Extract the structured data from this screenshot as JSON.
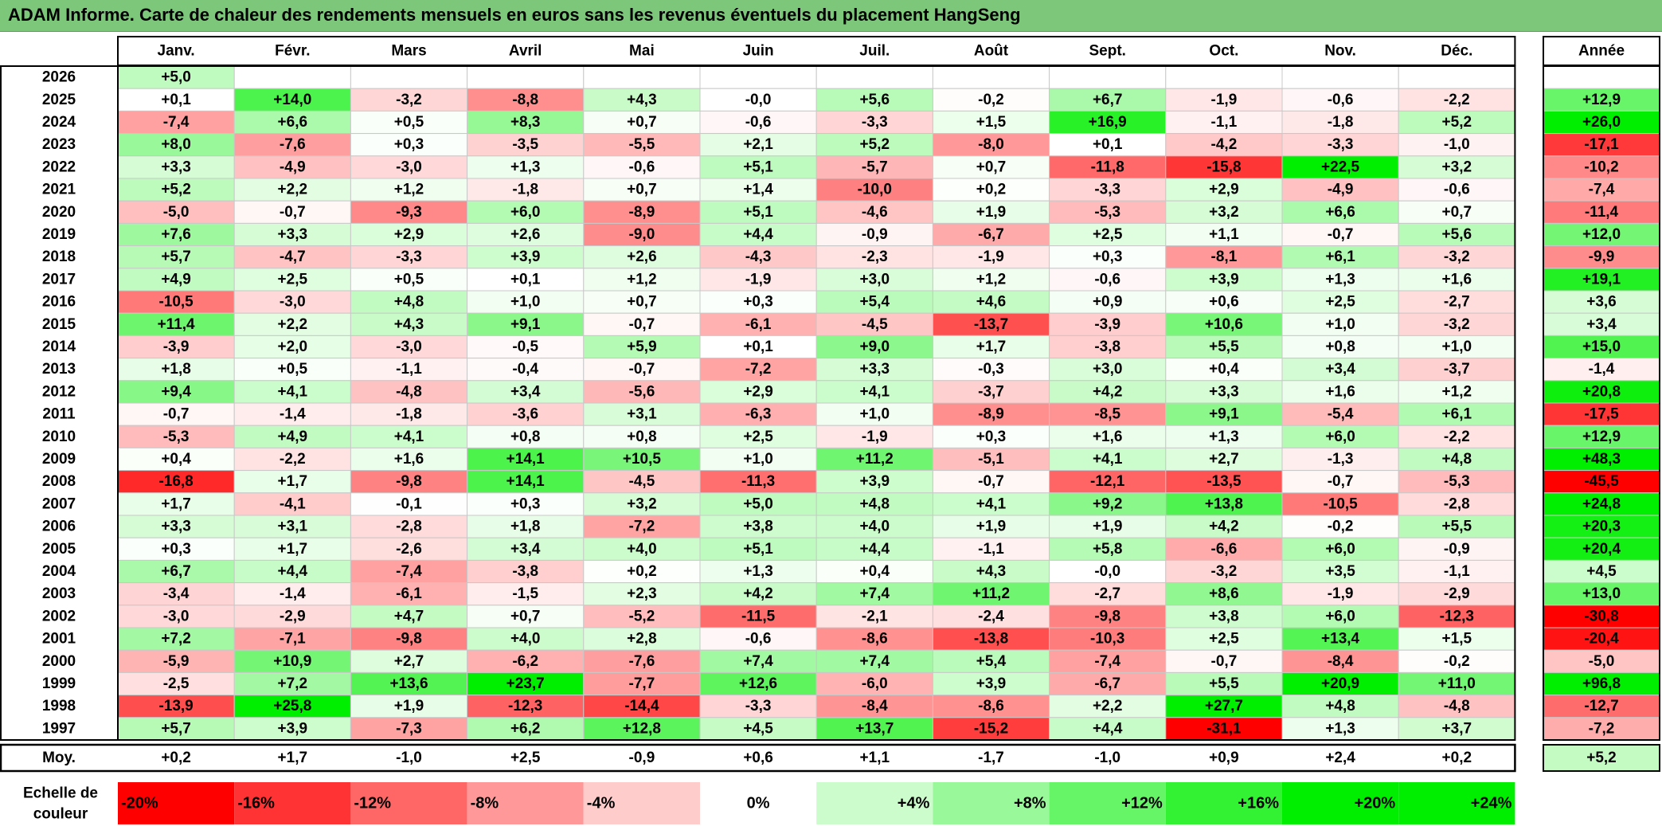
{
  "title": "ADAM Informe. Carte de chaleur des rendements mensuels en euros sans les revenus éventuels du placement HangSeng",
  "colors": {
    "negative_max": "#ff0000",
    "neutral": "#ffffff",
    "positive_max": "#00ee00",
    "title_bg": "#7cc77a",
    "border": "#000000"
  },
  "chart_data": {
    "type": "heatmap",
    "months": [
      "Janv.",
      "Févr.",
      "Mars",
      "Avril",
      "Mai",
      "Juin",
      "Juil.",
      "Août",
      "Sept.",
      "Oct.",
      "Nov.",
      "Déc."
    ],
    "annual_header": "Année",
    "avg_label": "Moy.",
    "years": [
      "2026",
      "2025",
      "2024",
      "2023",
      "2022",
      "2021",
      "2020",
      "2019",
      "2018",
      "2017",
      "2016",
      "2015",
      "2014",
      "2013",
      "2012",
      "2011",
      "2010",
      "2009",
      "2008",
      "2007",
      "2006",
      "2005",
      "2004",
      "2003",
      "2002",
      "2001",
      "2000",
      "1999",
      "1998",
      "1997"
    ],
    "values": [
      [
        "+5,0",
        "",
        "",
        "",
        "",
        "",
        "",
        "",
        "",
        "",
        "",
        ""
      ],
      [
        "+0,1",
        "+14,0",
        "-3,2",
        "-8,8",
        "+4,3",
        "-0,0",
        "+5,6",
        "-0,2",
        "+6,7",
        "-1,9",
        "-0,6",
        "-2,2"
      ],
      [
        "-7,4",
        "+6,6",
        "+0,5",
        "+8,3",
        "+0,7",
        "-0,6",
        "-3,3",
        "+1,5",
        "+16,9",
        "-1,1",
        "-1,8",
        "+5,2"
      ],
      [
        "+8,0",
        "-7,6",
        "+0,3",
        "-3,5",
        "-5,5",
        "+2,1",
        "+5,2",
        "-8,0",
        "+0,1",
        "-4,2",
        "-3,3",
        "-1,0"
      ],
      [
        "+3,3",
        "-4,9",
        "-3,0",
        "+1,3",
        "-0,6",
        "+5,1",
        "-5,7",
        "+0,7",
        "-11,8",
        "-15,8",
        "+22,5",
        "+3,2"
      ],
      [
        "+5,2",
        "+2,2",
        "+1,2",
        "-1,8",
        "+0,7",
        "+1,4",
        "-10,0",
        "+0,2",
        "-3,3",
        "+2,9",
        "-4,9",
        "-0,6"
      ],
      [
        "-5,0",
        "-0,7",
        "-9,3",
        "+6,0",
        "-8,9",
        "+5,1",
        "-4,6",
        "+1,9",
        "-5,3",
        "+3,2",
        "+6,6",
        "+0,7"
      ],
      [
        "+7,6",
        "+3,3",
        "+2,9",
        "+2,6",
        "-9,0",
        "+4,4",
        "-0,9",
        "-6,7",
        "+2,5",
        "+1,1",
        "-0,7",
        "+5,6"
      ],
      [
        "+5,7",
        "-4,7",
        "-3,3",
        "+3,9",
        "+2,6",
        "-4,3",
        "-2,3",
        "-1,9",
        "+0,3",
        "-8,1",
        "+6,1",
        "-3,2"
      ],
      [
        "+4,9",
        "+2,5",
        "+0,5",
        "+0,1",
        "+1,2",
        "-1,9",
        "+3,0",
        "+1,2",
        "-0,6",
        "+3,9",
        "+1,3",
        "+1,6"
      ],
      [
        "-10,5",
        "-3,0",
        "+4,8",
        "+1,0",
        "+0,7",
        "+0,3",
        "+5,4",
        "+4,6",
        "+0,9",
        "+0,6",
        "+2,5",
        "-2,7"
      ],
      [
        "+11,4",
        "+2,2",
        "+4,3",
        "+9,1",
        "-0,7",
        "-6,1",
        "-4,5",
        "-13,7",
        "-3,9",
        "+10,6",
        "+1,0",
        "-3,2"
      ],
      [
        "-3,9",
        "+2,0",
        "-3,0",
        "-0,5",
        "+5,9",
        "+0,1",
        "+9,0",
        "+1,7",
        "-3,8",
        "+5,5",
        "+0,8",
        "+1,0"
      ],
      [
        "+1,8",
        "+0,5",
        "-1,1",
        "-0,4",
        "-0,7",
        "-7,2",
        "+3,3",
        "-0,3",
        "+3,0",
        "+0,4",
        "+3,4",
        "-3,7"
      ],
      [
        "+9,4",
        "+4,1",
        "-4,8",
        "+3,4",
        "-5,6",
        "+2,9",
        "+4,1",
        "-3,7",
        "+4,2",
        "+3,3",
        "+1,6",
        "+1,2"
      ],
      [
        "-0,7",
        "-1,4",
        "-1,8",
        "-3,6",
        "+3,1",
        "-6,3",
        "+1,0",
        "-8,9",
        "-8,5",
        "+9,1",
        "-5,4",
        "+6,1"
      ],
      [
        "-5,3",
        "+4,9",
        "+4,1",
        "+0,8",
        "+0,8",
        "+2,5",
        "-1,9",
        "+0,3",
        "+1,6",
        "+1,3",
        "+6,0",
        "-2,2"
      ],
      [
        "+0,4",
        "-2,2",
        "+1,6",
        "+14,1",
        "+10,5",
        "+1,0",
        "+11,2",
        "-5,1",
        "+4,1",
        "+2,7",
        "-1,3",
        "+4,8"
      ],
      [
        "-16,8",
        "+1,7",
        "-9,8",
        "+14,1",
        "-4,5",
        "-11,3",
        "+3,9",
        "-0,7",
        "-12,1",
        "-13,5",
        "-0,7",
        "-5,3"
      ],
      [
        "+1,7",
        "-4,1",
        "-0,1",
        "+0,3",
        "+3,2",
        "+5,0",
        "+4,8",
        "+4,1",
        "+9,2",
        "+13,8",
        "-10,5",
        "-2,8"
      ],
      [
        "+3,3",
        "+3,1",
        "-2,8",
        "+1,8",
        "-7,2",
        "+3,8",
        "+4,0",
        "+1,9",
        "+1,9",
        "+4,2",
        "-0,2",
        "+5,5"
      ],
      [
        "+0,3",
        "+1,7",
        "-2,6",
        "+3,4",
        "+4,0",
        "+5,1",
        "+4,4",
        "-1,1",
        "+5,8",
        "-6,6",
        "+6,0",
        "-0,9"
      ],
      [
        "+6,7",
        "+4,4",
        "-7,4",
        "-3,8",
        "+0,2",
        "+1,3",
        "+0,4",
        "+4,3",
        "-0,0",
        "-3,2",
        "+3,5",
        "-1,1"
      ],
      [
        "-3,4",
        "-1,4",
        "-6,1",
        "-1,5",
        "+2,3",
        "+4,2",
        "+7,4",
        "+11,2",
        "-2,7",
        "+8,6",
        "-1,9",
        "-2,9"
      ],
      [
        "-3,0",
        "-2,9",
        "+4,7",
        "+0,7",
        "-5,2",
        "-11,5",
        "-2,1",
        "-2,4",
        "-9,8",
        "+3,8",
        "+6,0",
        "-12,3"
      ],
      [
        "+7,2",
        "-7,1",
        "-9,8",
        "+4,0",
        "+2,8",
        "-0,6",
        "-8,6",
        "-13,8",
        "-10,3",
        "+2,5",
        "+13,4",
        "+1,5"
      ],
      [
        "-5,9",
        "+10,9",
        "+2,7",
        "-6,2",
        "-7,6",
        "+7,4",
        "+7,4",
        "+5,4",
        "-7,4",
        "-0,7",
        "-8,4",
        "-0,2"
      ],
      [
        "-2,5",
        "+7,2",
        "+13,6",
        "+23,7",
        "-7,7",
        "+12,6",
        "-6,0",
        "+3,9",
        "-6,7",
        "+5,5",
        "+20,9",
        "+11,0"
      ],
      [
        "-13,9",
        "+25,8",
        "+1,9",
        "-12,3",
        "-14,4",
        "-3,3",
        "-8,4",
        "-8,6",
        "+2,2",
        "+27,7",
        "+4,8",
        "-4,8"
      ],
      [
        "+5,7",
        "+3,9",
        "-7,3",
        "+6,2",
        "+12,8",
        "+4,5",
        "+13,7",
        "-15,2",
        "+4,4",
        "-31,1",
        "+1,3",
        "+3,7"
      ]
    ],
    "annual": [
      "",
      "+12,9",
      "+26,0",
      "-17,1",
      "-10,2",
      "-7,4",
      "-11,4",
      "+12,0",
      "-9,9",
      "+19,1",
      "+3,6",
      "+3,4",
      "+15,0",
      "-1,4",
      "+20,8",
      "-17,5",
      "+12,9",
      "+48,3",
      "-45,5",
      "+24,8",
      "+20,3",
      "+20,4",
      "+4,5",
      "+13,0",
      "-30,8",
      "-20,4",
      "-5,0",
      "+96,8",
      "-12,7",
      "-7,2"
    ],
    "monthly_average": [
      "+0,2",
      "+1,7",
      "-1,0",
      "+2,5",
      "-0,9",
      "+0,6",
      "+1,1",
      "-1,7",
      "-1,0",
      "+0,9",
      "+2,4",
      "+0,2"
    ],
    "annual_average": "+5,2",
    "color_scale": {
      "label": "Echelle de couleur",
      "stops": [
        "-20%",
        "-16%",
        "-12%",
        "-8%",
        "-4%",
        "0%",
        "+4%",
        "+8%",
        "+12%",
        "+16%",
        "+20%",
        "+24%"
      ]
    }
  }
}
